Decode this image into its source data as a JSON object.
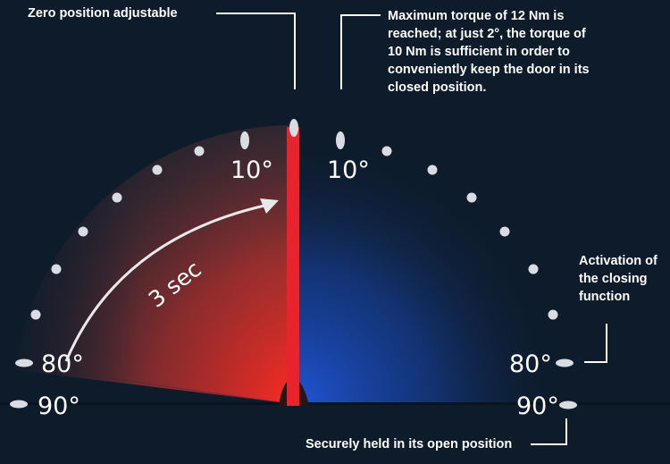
{
  "annotations": {
    "zero_position": "Zero position adjustable",
    "max_torque": "Maximum torque of 12 Nm is reached; at just 2°, the torque of 10 Nm is sufficient in order to conveniently keep the door in its closed position.",
    "activation": "Activation of the closing function",
    "open_hold": "Securely held in its open position"
  },
  "angle_labels": {
    "left_10": "10°",
    "right_10": "10°",
    "left_80": "80°",
    "right_80": "80°",
    "left_90": "90°",
    "right_90": "90°"
  },
  "closing_time": "3 sec",
  "colors": {
    "background": "#0d1b2a",
    "closing_zone": "#e0282f",
    "open_zone": "#1e4fc4",
    "door_bar": "#e8232b",
    "markers": "#d9dde3"
  }
}
